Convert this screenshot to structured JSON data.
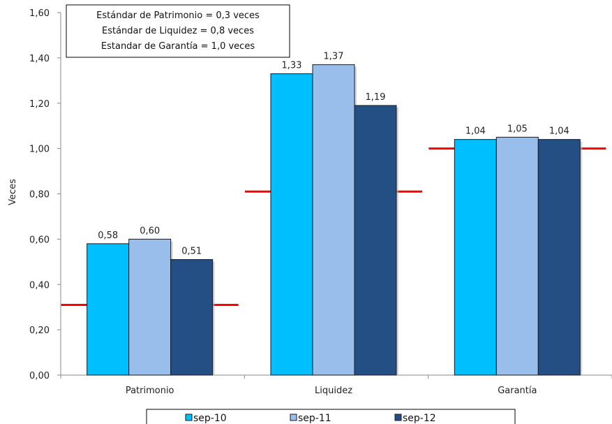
{
  "chart_data": {
    "type": "bar",
    "ylabel": "Veces",
    "ylim": [
      0,
      1.6
    ],
    "ytick_step": 0.2,
    "decimal_comma": true,
    "grid": false,
    "legend_position": "bottom",
    "categories": [
      "Patrimonio",
      "Liquidez",
      "Garantía"
    ],
    "series": [
      {
        "name": "sep-10",
        "color": "#00BFFF",
        "values": [
          0.58,
          1.33,
          1.04
        ]
      },
      {
        "name": "sep-11",
        "color": "#99BEEC",
        "values": [
          0.6,
          1.37,
          1.05
        ]
      },
      {
        "name": "sep-12",
        "color": "#244F85",
        "values": [
          0.51,
          1.19,
          1.04
        ]
      }
    ],
    "data_labels": [
      [
        "0,58",
        "1,33",
        "1,04"
      ],
      [
        "0,60",
        "1,37",
        "1,05"
      ],
      [
        "0,51",
        "1,19",
        "1,04"
      ]
    ],
    "reference_lines": [
      {
        "category": "Patrimonio",
        "value": 0.31,
        "color": "#FF0000"
      },
      {
        "category": "Liquidez",
        "value": 0.81,
        "color": "#FF0000"
      },
      {
        "category": "Garantía",
        "value": 1.0,
        "color": "#FF0000"
      }
    ],
    "annotation": [
      "Estándar de Patrimonio = 0,3 veces",
      "Estándar de Liquidez = 0,8 veces",
      "Estandar de Garantía = 1,0 veces"
    ]
  }
}
